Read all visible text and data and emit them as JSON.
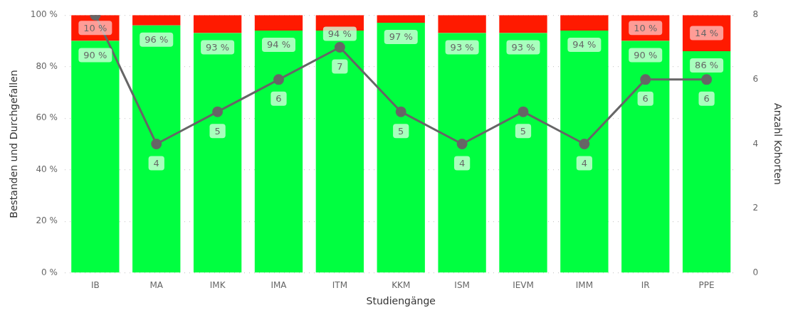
{
  "chart_data": {
    "type": "bar",
    "stacked": true,
    "xlabel": "Studiengänge",
    "ylabel": "Bestanden und Durchgefallen",
    "y2label": "Anzahl Kohorten",
    "categories": [
      "IB",
      "MA",
      "IMK",
      "IMA",
      "ITM",
      "KKM",
      "ISM",
      "IEVM",
      "IMM",
      "IR",
      "PPE"
    ],
    "series": [
      {
        "color": "#00ff40",
        "values": [
          90,
          96,
          93,
          94,
          94,
          97,
          93,
          93,
          94,
          90,
          86
        ],
        "value_labels": [
          "90 %",
          "96 %",
          "93 %",
          "94 %",
          "94 %",
          "97 %",
          "93 %",
          "93 %",
          "94 %",
          "90 %",
          "86 %"
        ]
      },
      {
        "color": "#ff1a00",
        "values": [
          10,
          4,
          7,
          6,
          6,
          3,
          7,
          7,
          6,
          10,
          14
        ],
        "value_labels": [
          "10 %",
          null,
          null,
          null,
          null,
          null,
          null,
          null,
          null,
          "10 %",
          "14 %"
        ]
      },
      {
        "type": "line",
        "axis": "y2",
        "color": "#666666",
        "values": [
          8,
          4,
          5,
          6,
          7,
          5,
          4,
          5,
          4,
          6,
          6
        ],
        "value_labels": [
          null,
          "4",
          "5",
          "6",
          "7",
          "5",
          "4",
          "5",
          "4",
          "6",
          "6"
        ]
      }
    ],
    "ylim": [
      0,
      100
    ],
    "yticks": [
      {
        "value": 0,
        "label": "0 %"
      },
      {
        "value": 20,
        "label": "20 %"
      },
      {
        "value": 40,
        "label": "40 %"
      },
      {
        "value": 60,
        "label": "60 %"
      },
      {
        "value": 80,
        "label": "80 %"
      },
      {
        "value": 100,
        "label": "100 %"
      }
    ],
    "y2lim": [
      0,
      8
    ],
    "y2ticks": [
      0,
      2,
      4,
      6,
      8
    ],
    "grid": "y",
    "legend": false,
    "marker": "circle",
    "line_style": "solid"
  }
}
